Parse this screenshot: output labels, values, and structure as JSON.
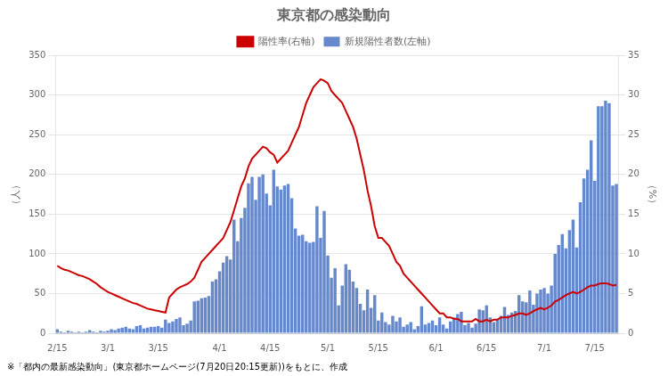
{
  "chart_data": {
    "type": "bar",
    "title": "東京都の感染動向",
    "footnote": "※「都内の最新感染動向」(東京都ホームページ(7月20日20:15更新))をもとに、作成",
    "ylabel": "（人）",
    "y2label": "（%）",
    "categories": [
      "2/15",
      null,
      null,
      null,
      null,
      null,
      null,
      null,
      null,
      null,
      null,
      null,
      null,
      null,
      "3/1",
      null,
      null,
      null,
      null,
      null,
      null,
      null,
      null,
      null,
      null,
      null,
      null,
      null,
      "3/15",
      null,
      null,
      null,
      null,
      null,
      null,
      null,
      null,
      null,
      null,
      null,
      null,
      null,
      null,
      null,
      null,
      "4/1",
      null,
      null,
      null,
      null,
      null,
      null,
      null,
      null,
      null,
      null,
      null,
      null,
      null,
      "4/15",
      null,
      null,
      null,
      null,
      null,
      null,
      null,
      null,
      null,
      null,
      null,
      null,
      null,
      null,
      null,
      "5/1",
      null,
      null,
      null,
      null,
      null,
      null,
      null,
      null,
      null,
      null,
      null,
      null,
      null,
      "5/15",
      null,
      null,
      null,
      null,
      null,
      null,
      null,
      null,
      null,
      null,
      null,
      null,
      null,
      null,
      null,
      "6/1",
      null,
      null,
      null,
      null,
      null,
      null,
      null,
      null,
      null,
      null,
      null,
      null,
      null,
      "6/15",
      null,
      null,
      null,
      null,
      null,
      null,
      null,
      null,
      null,
      null,
      null,
      null,
      null,
      null,
      null,
      "7/1",
      null,
      null,
      null,
      null,
      null,
      null,
      null,
      null,
      null,
      null,
      null,
      null,
      null,
      "7/15",
      null,
      null,
      null,
      null,
      null,
      null
    ],
    "series": [
      {
        "name": "新規陽性者数(左軸)",
        "type": "bar",
        "color": "#6688cc",
        "values": [
          5,
          2,
          1,
          3,
          2,
          1,
          2,
          1,
          2,
          4,
          2,
          1,
          3,
          2,
          3,
          5,
          4,
          6,
          7,
          8,
          6,
          5,
          9,
          10,
          6,
          7,
          8,
          8,
          9,
          7,
          17,
          13,
          15,
          18,
          20,
          10,
          12,
          16,
          40,
          41,
          44,
          45,
          47,
          65,
          68,
          78,
          89,
          97,
          93,
          143,
          116,
          145,
          158,
          189,
          197,
          168,
          197,
          200,
          176,
          161,
          206,
          185,
          181,
          186,
          188,
          170,
          132,
          123,
          124,
          116,
          114,
          115,
          160,
          120,
          154,
          98,
          70,
          82,
          35,
          60,
          87,
          80,
          65,
          57,
          37,
          29,
          55,
          32,
          48,
          16,
          26,
          14,
          11,
          22,
          15,
          20,
          8,
          11,
          14,
          5,
          9,
          34,
          11,
          13,
          16,
          10,
          20,
          11,
          6,
          15,
          20,
          24,
          27,
          10,
          13,
          7,
          12,
          30,
          29,
          35,
          20,
          14,
          17,
          22,
          33,
          23,
          26,
          28,
          48,
          40,
          39,
          54,
          36,
          50,
          55,
          57,
          50,
          60,
          100,
          111,
          125,
          107,
          130,
          143,
          108,
          165,
          195,
          206,
          243,
          192,
          286,
          286,
          293,
          290,
          186,
          188
        ]
      },
      {
        "name": "陽性率(右軸)",
        "type": "line",
        "axis": "y2",
        "color": "#cc0000",
        "values": [
          8.5,
          8.2,
          8.0,
          7.9,
          7.7,
          7.5,
          7.3,
          7.2,
          7.0,
          6.8,
          6.5,
          6.2,
          5.8,
          5.5,
          5.2,
          5.0,
          4.8,
          4.6,
          4.4,
          4.2,
          4.0,
          3.8,
          3.7,
          3.5,
          3.3,
          3.1,
          3.0,
          2.9,
          2.8,
          2.7,
          2.6,
          4.5,
          5.0,
          5.5,
          5.8,
          6.0,
          6.2,
          6.5,
          7.0,
          8.0,
          9.0,
          9.5,
          10.0,
          10.5,
          11.0,
          11.5,
          12.0,
          13.0,
          14.0,
          15.5,
          17.0,
          18.5,
          19.5,
          21.0,
          22.0,
          22.5,
          23.0,
          23.5,
          23.3,
          22.8,
          22.5,
          21.5,
          22.0,
          22.5,
          23.0,
          24.0,
          25.0,
          26.0,
          27.5,
          29.0,
          30.0,
          31.0,
          31.5,
          32.0,
          31.8,
          31.5,
          30.5,
          30.0,
          29.5,
          29.0,
          28.0,
          27.0,
          26.0,
          24.5,
          22.5,
          20.5,
          18.0,
          16.0,
          13.5,
          12.0,
          12.0,
          11.5,
          11.0,
          10.0,
          9.0,
          8.5,
          7.5,
          7.0,
          6.5,
          6.0,
          5.5,
          5.0,
          4.5,
          4.0,
          3.5,
          3.0,
          2.5,
          2.5,
          2.0,
          2.0,
          1.8,
          1.8,
          1.5,
          1.5,
          1.5,
          1.5,
          1.8,
          1.5,
          1.5,
          1.7,
          1.5,
          1.7,
          1.7,
          2.0,
          2.0,
          2.0,
          2.2,
          2.3,
          2.5,
          2.5,
          2.3,
          2.5,
          2.8,
          3.0,
          3.2,
          3.0,
          3.2,
          3.5,
          4.0,
          4.2,
          4.5,
          4.8,
          5.0,
          5.2,
          5.0,
          5.2,
          5.5,
          5.8,
          6.0,
          6.0,
          6.2,
          6.3,
          6.3,
          6.2,
          6.0,
          6.1
        ]
      }
    ],
    "ylim": [
      0,
      350
    ],
    "yticks": [
      0,
      50,
      100,
      150,
      200,
      250,
      300,
      350
    ],
    "y2lim": [
      0,
      35
    ],
    "y2ticks": [
      0,
      5,
      10,
      15,
      20,
      25,
      30,
      35
    ],
    "grid": true,
    "legend": "top"
  }
}
